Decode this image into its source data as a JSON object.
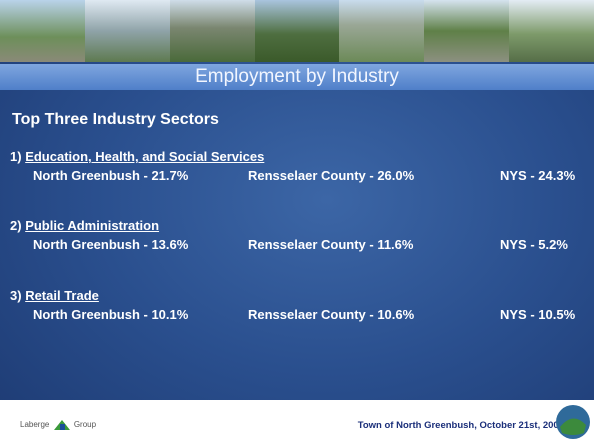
{
  "slide": {
    "title": "Employment by Industry",
    "heading": "Top Three Industry Sectors",
    "sectors": [
      {
        "number": "1)",
        "name": "Education, Health, and Social Services",
        "stats": [
          "North Greenbush - 21.7%",
          "Rensselaer County - 26.0%",
          "NYS - 24.3%"
        ]
      },
      {
        "number": "2)",
        "name": "Public Administration",
        "stats": [
          "North Greenbush - 13.6%",
          "Rensselaer County - 11.6%",
          "NYS - 5.2%"
        ]
      },
      {
        "number": "3)",
        "name": "Retail Trade",
        "stats": [
          "North Greenbush - 10.1%",
          "Rensselaer County - 10.6%",
          "NYS - 10.5%"
        ]
      }
    ],
    "footer": {
      "logo": [
        "Laberge",
        "Group"
      ],
      "text": "Town of North Greenbush, October 21st, 2008"
    }
  }
}
